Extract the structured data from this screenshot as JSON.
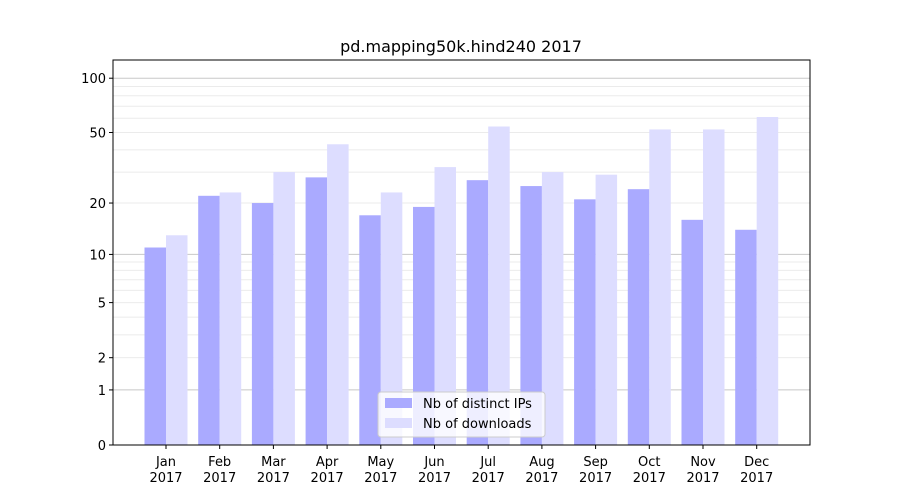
{
  "chart_data": {
    "type": "bar",
    "title": "pd.mapping50k.hind240 2017",
    "xlabel": "",
    "ylabel": "",
    "yscale": "log10(1+y)",
    "ylim": [
      0,
      125
    ],
    "yticks": [
      0,
      1,
      2,
      5,
      10,
      20,
      50,
      100
    ],
    "categories": [
      "Jan\n2017",
      "Feb\n2017",
      "Mar\n2017",
      "Apr\n2017",
      "May\n2017",
      "Jun\n2017",
      "Jul\n2017",
      "Aug\n2017",
      "Sep\n2017",
      "Oct\n2017",
      "Nov\n2017",
      "Dec\n2017"
    ],
    "series": [
      {
        "name": "Nb of distinct IPs",
        "color": "#aaaaff",
        "values": [
          11,
          22,
          20,
          28,
          17,
          19,
          27,
          25,
          21,
          24,
          16,
          14
        ]
      },
      {
        "name": "Nb of downloads",
        "color": "#ddddff",
        "values": [
          13,
          23,
          30,
          43,
          23,
          32,
          54,
          30,
          29,
          52,
          52,
          61
        ]
      }
    ],
    "grid": true,
    "legend_position": "lower-center"
  }
}
